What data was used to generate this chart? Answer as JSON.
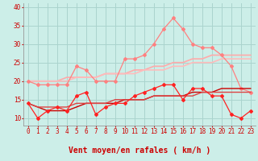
{
  "background_color": "#cceee8",
  "grid_color": "#aad4ce",
  "xlabel": "Vent moyen/en rafales ( km/h )",
  "xlim": [
    -0.5,
    23.5
  ],
  "ylim": [
    8,
    41
  ],
  "yticks": [
    10,
    15,
    20,
    25,
    30,
    35,
    40
  ],
  "xticks": [
    0,
    1,
    2,
    3,
    4,
    5,
    6,
    7,
    8,
    9,
    10,
    11,
    12,
    13,
    14,
    15,
    16,
    17,
    18,
    19,
    20,
    21,
    22,
    23
  ],
  "x": [
    0,
    1,
    2,
    3,
    4,
    5,
    6,
    7,
    8,
    9,
    10,
    11,
    12,
    13,
    14,
    15,
    16,
    17,
    18,
    19,
    20,
    21,
    22,
    23
  ],
  "series": [
    {
      "y": [
        20,
        19,
        19,
        19,
        19,
        24,
        23,
        20,
        20,
        20,
        26,
        26,
        27,
        30,
        34,
        37,
        34,
        30,
        29,
        29,
        27,
        24,
        18,
        17
      ],
      "color": "#ff8080",
      "lw": 0.9,
      "marker": "D",
      "ms": 2.0,
      "zorder": 3
    },
    {
      "y": [
        20,
        20,
        20,
        20,
        21,
        21,
        21,
        21,
        22,
        22,
        22,
        23,
        23,
        24,
        24,
        25,
        25,
        26,
        26,
        27,
        27,
        27,
        27,
        27
      ],
      "color": "#ffaaaa",
      "lw": 1.2,
      "marker": null,
      "ms": 0,
      "zorder": 2
    },
    {
      "y": [
        20,
        20,
        20,
        20,
        20,
        21,
        21,
        21,
        22,
        22,
        22,
        22,
        23,
        23,
        23,
        24,
        24,
        25,
        25,
        25,
        26,
        26,
        26,
        26
      ],
      "color": "#ffbbbb",
      "lw": 1.2,
      "marker": null,
      "ms": 0,
      "zorder": 2
    },
    {
      "y": [
        14,
        10,
        12,
        13,
        12,
        16,
        17,
        11,
        13,
        14,
        14,
        16,
        17,
        18,
        19,
        19,
        15,
        18,
        18,
        16,
        16,
        11,
        10,
        12
      ],
      "color": "#ff2222",
      "lw": 0.9,
      "marker": "D",
      "ms": 2.0,
      "zorder": 4
    },
    {
      "y": [
        14,
        13,
        12,
        12,
        12,
        13,
        14,
        14,
        14,
        14,
        15,
        15,
        15,
        16,
        16,
        16,
        16,
        17,
        17,
        17,
        18,
        18,
        18,
        18
      ],
      "color": "#cc0000",
      "lw": 1.0,
      "marker": null,
      "ms": 0,
      "zorder": 3
    },
    {
      "y": [
        14,
        13,
        13,
        13,
        13,
        14,
        14,
        14,
        14,
        15,
        15,
        15,
        15,
        16,
        16,
        16,
        16,
        16,
        17,
        17,
        17,
        17,
        17,
        17
      ],
      "color": "#dd4444",
      "lw": 1.0,
      "marker": null,
      "ms": 0,
      "zorder": 3
    }
  ],
  "tick_color": "#cc0000",
  "tick_fontsize": 5.5,
  "xlabel_fontsize": 7.0,
  "arrow_color": "#cc0000"
}
